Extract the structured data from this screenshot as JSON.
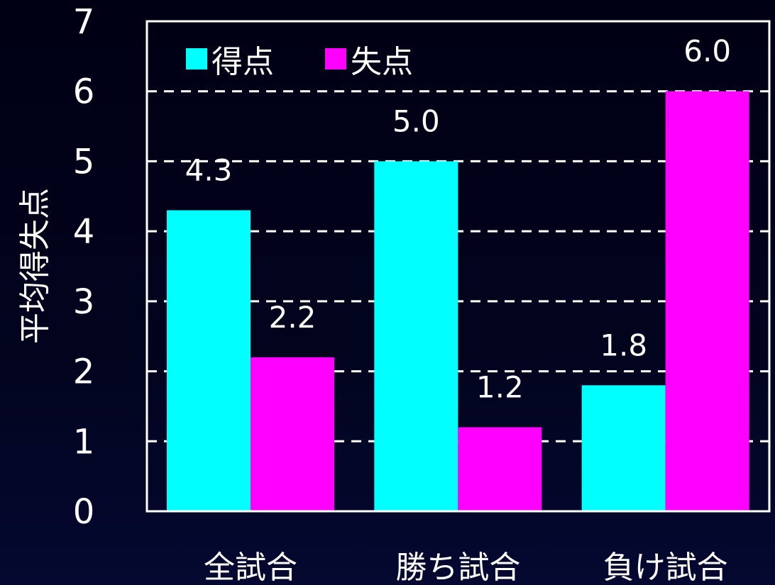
{
  "chart_data": {
    "type": "bar",
    "ylabel": "平均得失点",
    "categories": [
      "全試合",
      "勝ち試合",
      "負け試合"
    ],
    "series": [
      {
        "name": "得点",
        "values": [
          4.3,
          5.0,
          1.8
        ],
        "color": "#00ffff"
      },
      {
        "name": "失点",
        "values": [
          2.2,
          1.2,
          6.0
        ],
        "color": "#ff00ff"
      }
    ],
    "value_labels": [
      [
        "4.3",
        "5.0",
        "1.8"
      ],
      [
        "2.2",
        "1.2",
        "6.0"
      ]
    ],
    "ylim": [
      0,
      7
    ],
    "yticks": [
      0,
      1,
      2,
      3,
      4,
      5,
      6,
      7
    ],
    "grid": true,
    "grid_style": "dashed",
    "legend_position": "top-left",
    "colors": {
      "background": "#02031c",
      "text": "#ffffff",
      "grid": "#ffffff",
      "frame": "#ffffff"
    }
  }
}
